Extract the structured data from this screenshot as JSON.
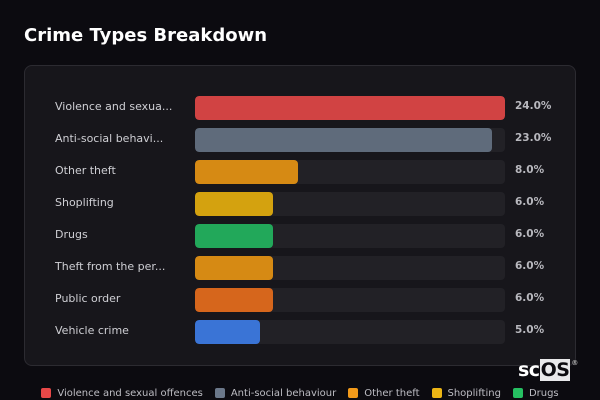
{
  "header": {
    "title": "Crime Types Breakdown"
  },
  "chart_data": {
    "type": "bar",
    "orientation": "horizontal",
    "title": "Crime Types Breakdown",
    "categories": [
      "Violence and sexual offences",
      "Anti-social behaviour",
      "Other theft",
      "Shoplifting",
      "Drugs",
      "Theft from the person",
      "Public order",
      "Vehicle crime"
    ],
    "display_labels": [
      "Violence and sexua...",
      "Anti-social behavi...",
      "Other theft",
      "Shoplifting",
      "Drugs",
      "Theft from the per...",
      "Public order",
      "Vehicle crime"
    ],
    "values": [
      24.0,
      23.0,
      8.0,
      6.0,
      6.0,
      6.0,
      6.0,
      5.0
    ],
    "value_labels": [
      "24.0%",
      "23.0%",
      "8.0%",
      "6.0%",
      "6.0%",
      "6.0%",
      "6.0%",
      "5.0%"
    ],
    "colors": [
      "#d14343",
      "#5f6b7b",
      "#d68a14",
      "#d4a20f",
      "#22a85a",
      "#d68a14",
      "#d6661c",
      "#3a74d6"
    ],
    "unit": "%",
    "xlabel": "",
    "ylabel": "",
    "xlim": [
      0,
      24
    ],
    "grid": false,
    "legend_position": "bottom",
    "legend": [
      {
        "label": "Violence and sexual offences",
        "color": "#e84848"
      },
      {
        "label": "Anti-social behaviour",
        "color": "#6b788a"
      },
      {
        "label": "Other theft",
        "color": "#f29a1a"
      },
      {
        "label": "Shoplifting",
        "color": "#ecb515"
      },
      {
        "label": "Drugs",
        "color": "#26c062"
      }
    ]
  },
  "watermark": {
    "prefix": "sc",
    "highlight": "OS",
    "mark": "®"
  }
}
